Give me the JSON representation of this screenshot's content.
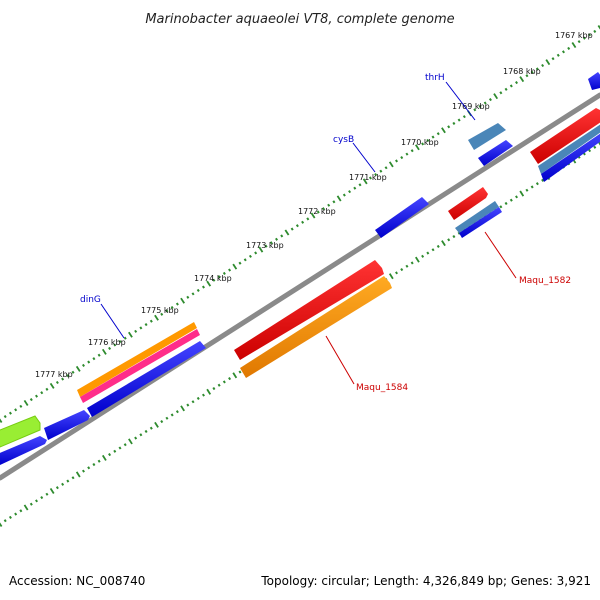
{
  "title": "Marinobacter aquaeolei VT8, complete genome",
  "ticks": [
    "1767 kbp",
    "1768 kbp",
    "1769 kbp",
    "1770 kbp",
    "1771 kbp",
    "1772 kbp",
    "1773 kbp",
    "1774 kbp",
    "1775 kbp",
    "1776 kbp",
    "1777 kbp"
  ],
  "gene_labels": [
    "thrH",
    "cysB",
    "dinG",
    "Maqu_1582",
    "Maqu_1584"
  ],
  "footer": {
    "accession": "Accession: NC_008740",
    "topology": "Topology: circular; Length: 4,326,849 bp; Genes: 3,921"
  },
  "colors": {
    "forward_cds": "#0000ee",
    "reverse_cds": "#ee0000",
    "orange": "#ff9900",
    "magenta": "#ff3399",
    "steel": "#4682b4",
    "lime": "#99ff33",
    "backbone": "#888888",
    "dots": "#2e8b2e"
  }
}
